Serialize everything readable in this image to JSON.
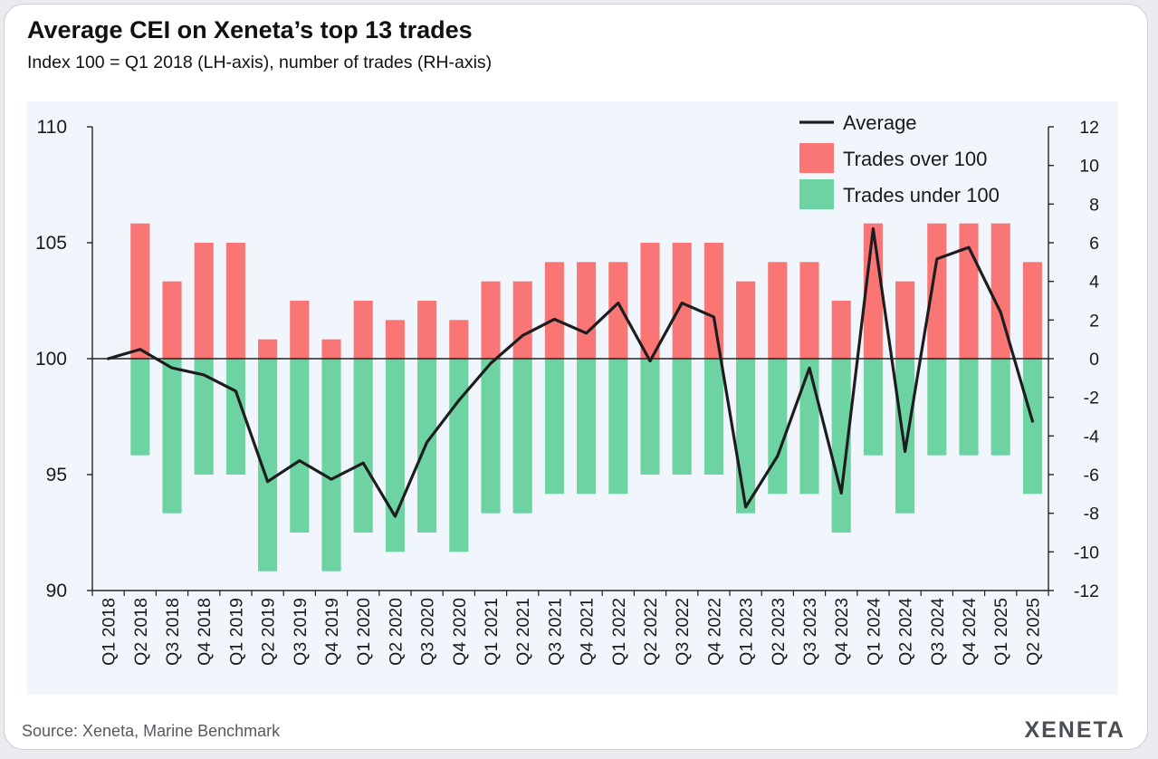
{
  "header": {
    "title": "Average CEI on Xeneta’s top 13 trades",
    "subtitle": "Index 100 = Q1 2018 (LH-axis), number of trades (RH-axis)"
  },
  "footer": {
    "source": "Source: Xeneta, Marine Benchmark",
    "logo": "XENETA"
  },
  "colors": {
    "over": "#fa7674",
    "under": "#6dd3a2",
    "line": "#1d1d1f",
    "axis": "#222222"
  },
  "chart_data": {
    "type": "bar",
    "title": "Average CEI on Xeneta’s top 13 trades",
    "subtitle": "Index 100 = Q1 2018 (LH-axis), number of trades (RH-axis)",
    "xlabel": "",
    "ylabel": "",
    "ylim_left": [
      90,
      110
    ],
    "ylim_right": [
      -12,
      12
    ],
    "yticks_left": [
      "90",
      "95",
      "100",
      "105",
      "110"
    ],
    "yticks_right": [
      "12",
      "10",
      "8",
      "6",
      "4",
      "2",
      "0",
      "-2",
      "-4",
      "-6",
      "-8",
      "-10",
      "-12"
    ],
    "legend_position": "top-right",
    "categories": [
      "Q1 2018",
      "Q2 2018",
      "Q3 2018",
      "Q4 2018",
      "Q1 2019",
      "Q2 2019",
      "Q3 2019",
      "Q4 2019",
      "Q1 2020",
      "Q2 2020",
      "Q3 2020",
      "Q4 2020",
      "Q1 2021",
      "Q2 2021",
      "Q3 2021",
      "Q4 2021",
      "Q1 2022",
      "Q2 2022",
      "Q3 2022",
      "Q4 2022",
      "Q1 2023",
      "Q2 2023",
      "Q3 2023",
      "Q4 2023",
      "Q1 2024",
      "Q2 2024",
      "Q3 2024",
      "Q4 2024",
      "Q1 2025",
      "Q2 2025"
    ],
    "series": [
      {
        "name": "Average",
        "kind": "line",
        "axis": "left",
        "values": [
          100,
          100.4,
          99.6,
          99.3,
          98.6,
          94.7,
          95.6,
          94.8,
          95.5,
          93.2,
          96.4,
          98.2,
          99.8,
          101.0,
          101.7,
          101.1,
          102.4,
          99.9,
          102.4,
          101.8,
          93.6,
          95.8,
          99.6,
          94.2,
          105.6,
          96.0,
          104.3,
          104.8,
          102.0,
          97.3
        ]
      },
      {
        "name": "Trades over 100",
        "kind": "bar",
        "axis": "right",
        "values": [
          0,
          7,
          4,
          6,
          6,
          1,
          3,
          1,
          3,
          2,
          3,
          2,
          4,
          4,
          5,
          5,
          5,
          6,
          6,
          6,
          4,
          5,
          5,
          3,
          7,
          4,
          7,
          7,
          7,
          5
        ]
      },
      {
        "name": "Trades under 100",
        "kind": "bar",
        "axis": "right",
        "values": [
          0,
          -5,
          -8,
          -6,
          -6,
          -11,
          -9,
          -11,
          -9,
          -10,
          -9,
          -10,
          -8,
          -8,
          -7,
          -7,
          -7,
          -6,
          -6,
          -6,
          -8,
          -7,
          -7,
          -9,
          -5,
          -8,
          -5,
          -5,
          -5,
          -7
        ]
      }
    ]
  }
}
